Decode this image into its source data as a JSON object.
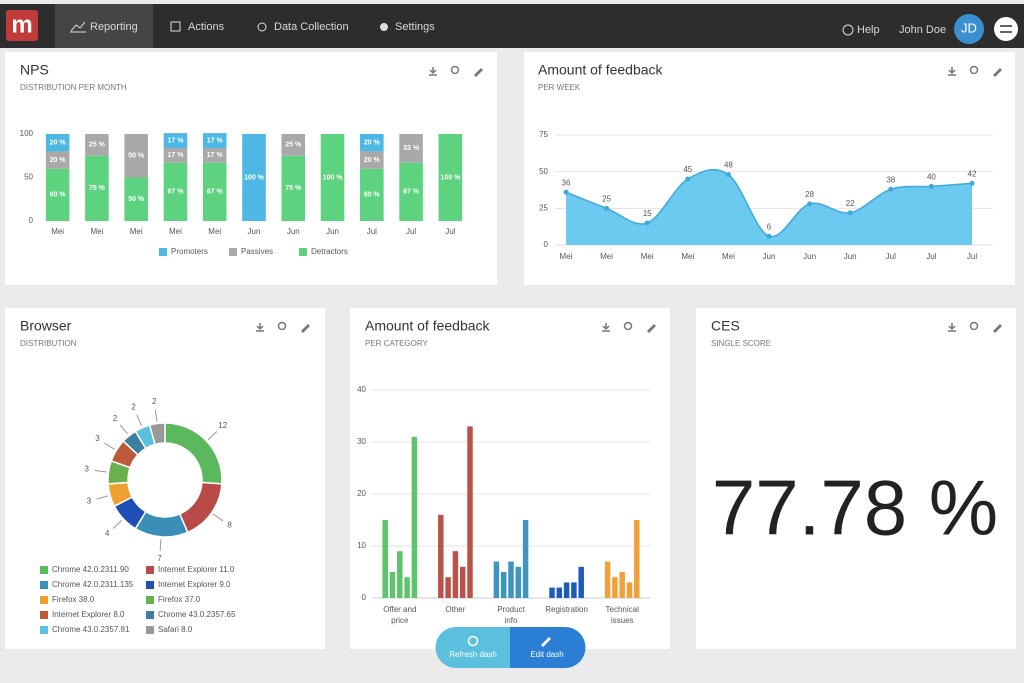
{
  "nav": {
    "logo": "m",
    "tabs": [
      "Reporting",
      "Actions",
      "Data Collection",
      "Settings"
    ],
    "help": "Help",
    "user": "John Doe",
    "avatar": "JD"
  },
  "chart_data": [
    {
      "type": "bar",
      "stacked": true,
      "title": "NPS",
      "subtitle": "DISTRIBUTION PER MONTH",
      "categories": [
        "Mei",
        "Mei",
        "Mei",
        "Mei",
        "Mei",
        "Jun",
        "Jun",
        "Jun",
        "Jul",
        "Jul",
        "Jul"
      ],
      "series": [
        {
          "name": "Promoters",
          "color": "#4db8e3",
          "values": [
            20,
            0,
            0,
            17,
            17,
            100,
            0,
            0,
            20,
            0,
            0
          ],
          "value_labels": [
            "20 %",
            null,
            null,
            "17 %",
            "17 %",
            "100 %",
            null,
            null,
            "20 %",
            null,
            null
          ]
        },
        {
          "name": "Passives",
          "color": "#a9a9a9",
          "values": [
            20,
            25,
            50,
            17,
            17,
            0,
            25,
            0,
            20,
            33,
            0
          ],
          "value_labels": [
            "20 %",
            "25 %",
            "50 %",
            "17 %",
            "17 %",
            null,
            "25 %",
            null,
            "20 %",
            "33 %",
            null
          ]
        },
        {
          "name": "Detractors",
          "color": "#5dd27f",
          "values": [
            60,
            75,
            50,
            67,
            67,
            0,
            75,
            100,
            60,
            67,
            100
          ],
          "value_labels": [
            "60 %",
            "75 %",
            "50 %",
            "67 %",
            "67 %",
            null,
            "75 %",
            "100 %",
            "60 %",
            "67 %",
            "100 %"
          ]
        }
      ],
      "ylim": [
        0,
        100
      ],
      "yticks": [
        0,
        50,
        100
      ],
      "grid": false,
      "legend": "bottom"
    },
    {
      "type": "area",
      "title": "Amount of feedback",
      "subtitle": "PER WEEK",
      "categories": [
        "Mei",
        "Mei",
        "Mei",
        "Mei",
        "Mei",
        "Jun",
        "Jun",
        "Jun",
        "Jul",
        "Jul",
        "Jul"
      ],
      "values": [
        36,
        25,
        15,
        45,
        48,
        6,
        28,
        22,
        38,
        40,
        42
      ],
      "color": "#5cc3ee",
      "ylim": [
        0,
        75
      ],
      "yticks": [
        0,
        25,
        50,
        75
      ],
      "grid": true
    },
    {
      "type": "pie",
      "donut": true,
      "title": "Browser",
      "subtitle": "DISTRIBUTION",
      "labels": [
        "Chrome 42.0.2311.90",
        "Internet Explorer 11.0",
        "Chrome 42.0.2311.135",
        "Internet Explorer 9.0",
        "Firefox 38.0",
        "Firefox 37.0",
        "Internet Explorer 8.0",
        "Chrome 43.0.2357.65",
        "Chrome 43.0.2357.81",
        "Safari 8.0"
      ],
      "values": [
        12,
        8,
        7,
        4,
        3,
        3,
        3,
        2,
        2,
        2
      ],
      "colors": [
        "#5cb85c",
        "#b94a48",
        "#3a8fb7",
        "#1f4fb5",
        "#f0a030",
        "#6ab04c",
        "#c0583a",
        "#3d7fa0",
        "#5bc0de",
        "#999999"
      ],
      "legend": "bottom"
    },
    {
      "type": "bar",
      "title": "Amount of feedback",
      "subtitle": "PER CATEGORY",
      "categories": [
        "Offer and price",
        "Other",
        "Product info",
        "Registration",
        "Technical issues"
      ],
      "values": [
        [
          15,
          5,
          9,
          4,
          31
        ],
        [
          16,
          4,
          9,
          6,
          33
        ],
        [
          7,
          5,
          7,
          6,
          15
        ],
        [
          2,
          2,
          3,
          3,
          6
        ],
        [
          7,
          4,
          5,
          3,
          15
        ]
      ],
      "colors": [
        "#5dc46b",
        "#b9534a",
        "#3f94c0",
        "#1f5cb8",
        "#f0a13a"
      ],
      "ylim": [
        0,
        40
      ],
      "yticks": [
        0,
        10,
        20,
        30,
        40
      ],
      "grid": true
    }
  ],
  "ces": {
    "title": "CES",
    "subtitle": "SINGLE SCORE",
    "value": "77.78 %"
  },
  "actions": [
    "Refresh dash",
    "Edit dash"
  ]
}
